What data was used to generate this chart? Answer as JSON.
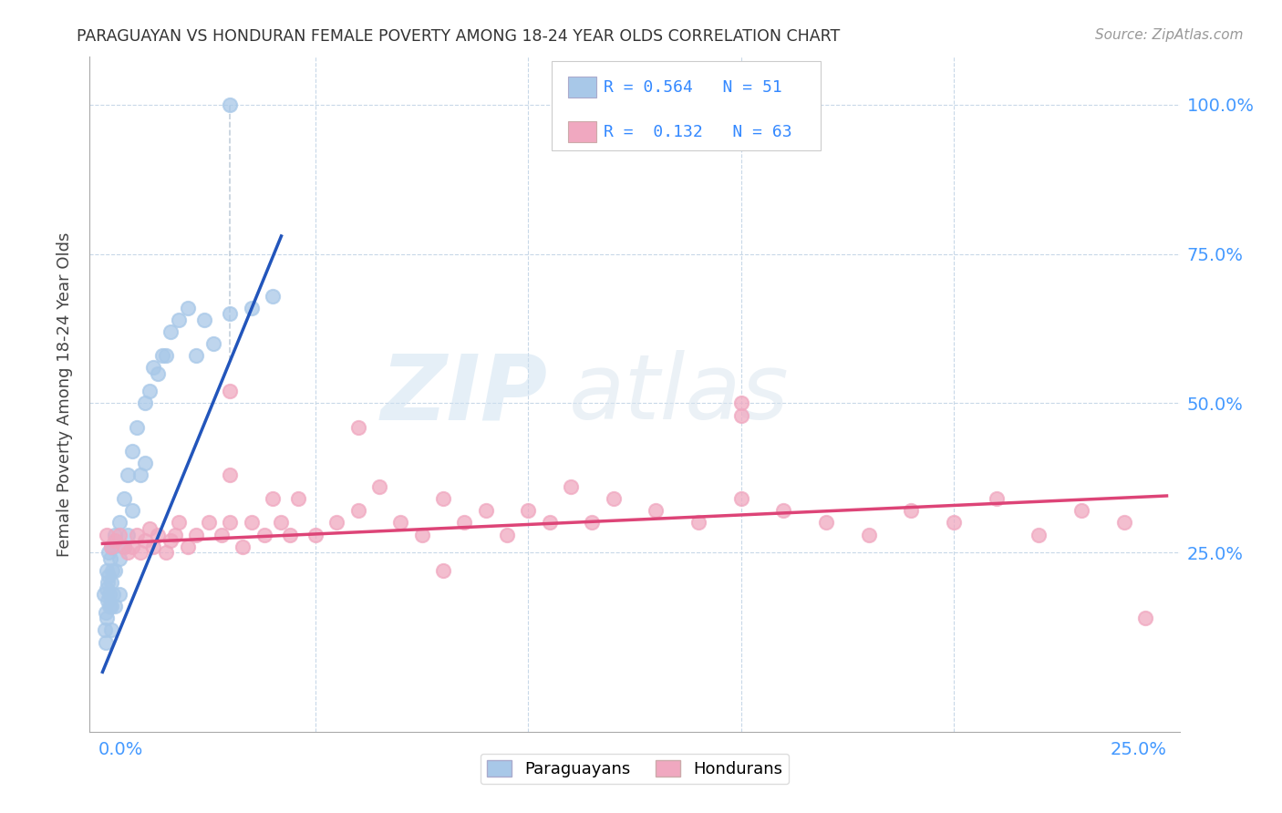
{
  "title": "PARAGUAYAN VS HONDURAN FEMALE POVERTY AMONG 18-24 YEAR OLDS CORRELATION CHART",
  "source": "Source: ZipAtlas.com",
  "ylabel": "Female Poverty Among 18-24 Year Olds",
  "paraguayan_color": "#a8c8e8",
  "honduran_color": "#f0a8c0",
  "paraguayan_line_color": "#2255bb",
  "honduran_line_color": "#dd4477",
  "background_color": "#ffffff",
  "grid_color": "#c8d8e8",
  "xlim": [
    0.0,
    0.25
  ],
  "ylim": [
    0.0,
    1.05
  ],
  "ytick_positions": [
    0.0,
    0.25,
    0.5,
    0.75,
    1.0
  ],
  "ytick_labels": [
    "",
    "25.0%",
    "50.0%",
    "75.0%",
    "100.0%"
  ],
  "xtick_positions": [
    0.0,
    0.05,
    0.1,
    0.15,
    0.2,
    0.25
  ],
  "xtick_left_label": "0.0%",
  "xtick_right_label": "25.0%",
  "par_x": [
    0.0003,
    0.0005,
    0.0007,
    0.0008,
    0.001,
    0.001,
    0.001,
    0.0012,
    0.0013,
    0.0015,
    0.0015,
    0.0016,
    0.0017,
    0.0018,
    0.002,
    0.002,
    0.002,
    0.002,
    0.0022,
    0.0025,
    0.003,
    0.003,
    0.003,
    0.004,
    0.004,
    0.004,
    0.005,
    0.005,
    0.006,
    0.006,
    0.007,
    0.007,
    0.008,
    0.009,
    0.01,
    0.01,
    0.011,
    0.012,
    0.013,
    0.014,
    0.015,
    0.016,
    0.018,
    0.02,
    0.022,
    0.024,
    0.026,
    0.03,
    0.035,
    0.04,
    0.03
  ],
  "par_y": [
    0.18,
    0.12,
    0.15,
    0.1,
    0.22,
    0.19,
    0.14,
    0.2,
    0.17,
    0.25,
    0.21,
    0.16,
    0.18,
    0.24,
    0.26,
    0.2,
    0.16,
    0.12,
    0.22,
    0.18,
    0.28,
    0.22,
    0.16,
    0.3,
    0.24,
    0.18,
    0.34,
    0.26,
    0.38,
    0.28,
    0.42,
    0.32,
    0.46,
    0.38,
    0.5,
    0.4,
    0.52,
    0.56,
    0.55,
    0.58,
    0.58,
    0.62,
    0.64,
    0.66,
    0.58,
    0.64,
    0.6,
    0.65,
    0.66,
    0.68,
    1.0
  ],
  "hon_x": [
    0.001,
    0.002,
    0.003,
    0.004,
    0.005,
    0.006,
    0.007,
    0.008,
    0.009,
    0.01,
    0.011,
    0.012,
    0.013,
    0.015,
    0.016,
    0.017,
    0.018,
    0.02,
    0.022,
    0.025,
    0.028,
    0.03,
    0.033,
    0.035,
    0.038,
    0.04,
    0.042,
    0.044,
    0.046,
    0.05,
    0.055,
    0.06,
    0.065,
    0.07,
    0.075,
    0.08,
    0.085,
    0.09,
    0.095,
    0.1,
    0.105,
    0.11,
    0.115,
    0.12,
    0.13,
    0.14,
    0.15,
    0.16,
    0.17,
    0.18,
    0.19,
    0.2,
    0.21,
    0.22,
    0.23,
    0.24,
    0.245,
    0.03,
    0.06,
    0.15,
    0.03,
    0.08,
    0.15
  ],
  "hon_y": [
    0.28,
    0.26,
    0.27,
    0.28,
    0.26,
    0.25,
    0.26,
    0.28,
    0.25,
    0.27,
    0.29,
    0.26,
    0.28,
    0.25,
    0.27,
    0.28,
    0.3,
    0.26,
    0.28,
    0.3,
    0.28,
    0.3,
    0.26,
    0.3,
    0.28,
    0.34,
    0.3,
    0.28,
    0.34,
    0.28,
    0.3,
    0.32,
    0.36,
    0.3,
    0.28,
    0.34,
    0.3,
    0.32,
    0.28,
    0.32,
    0.3,
    0.36,
    0.3,
    0.34,
    0.32,
    0.3,
    0.34,
    0.32,
    0.3,
    0.28,
    0.32,
    0.3,
    0.34,
    0.28,
    0.32,
    0.3,
    0.14,
    0.52,
    0.46,
    0.5,
    0.38,
    0.22,
    0.48
  ],
  "par_line_x": [
    0.0,
    0.042
  ],
  "par_line_y": [
    0.05,
    0.78
  ],
  "hon_line_x": [
    0.0,
    0.25
  ],
  "hon_line_y": [
    0.265,
    0.345
  ]
}
